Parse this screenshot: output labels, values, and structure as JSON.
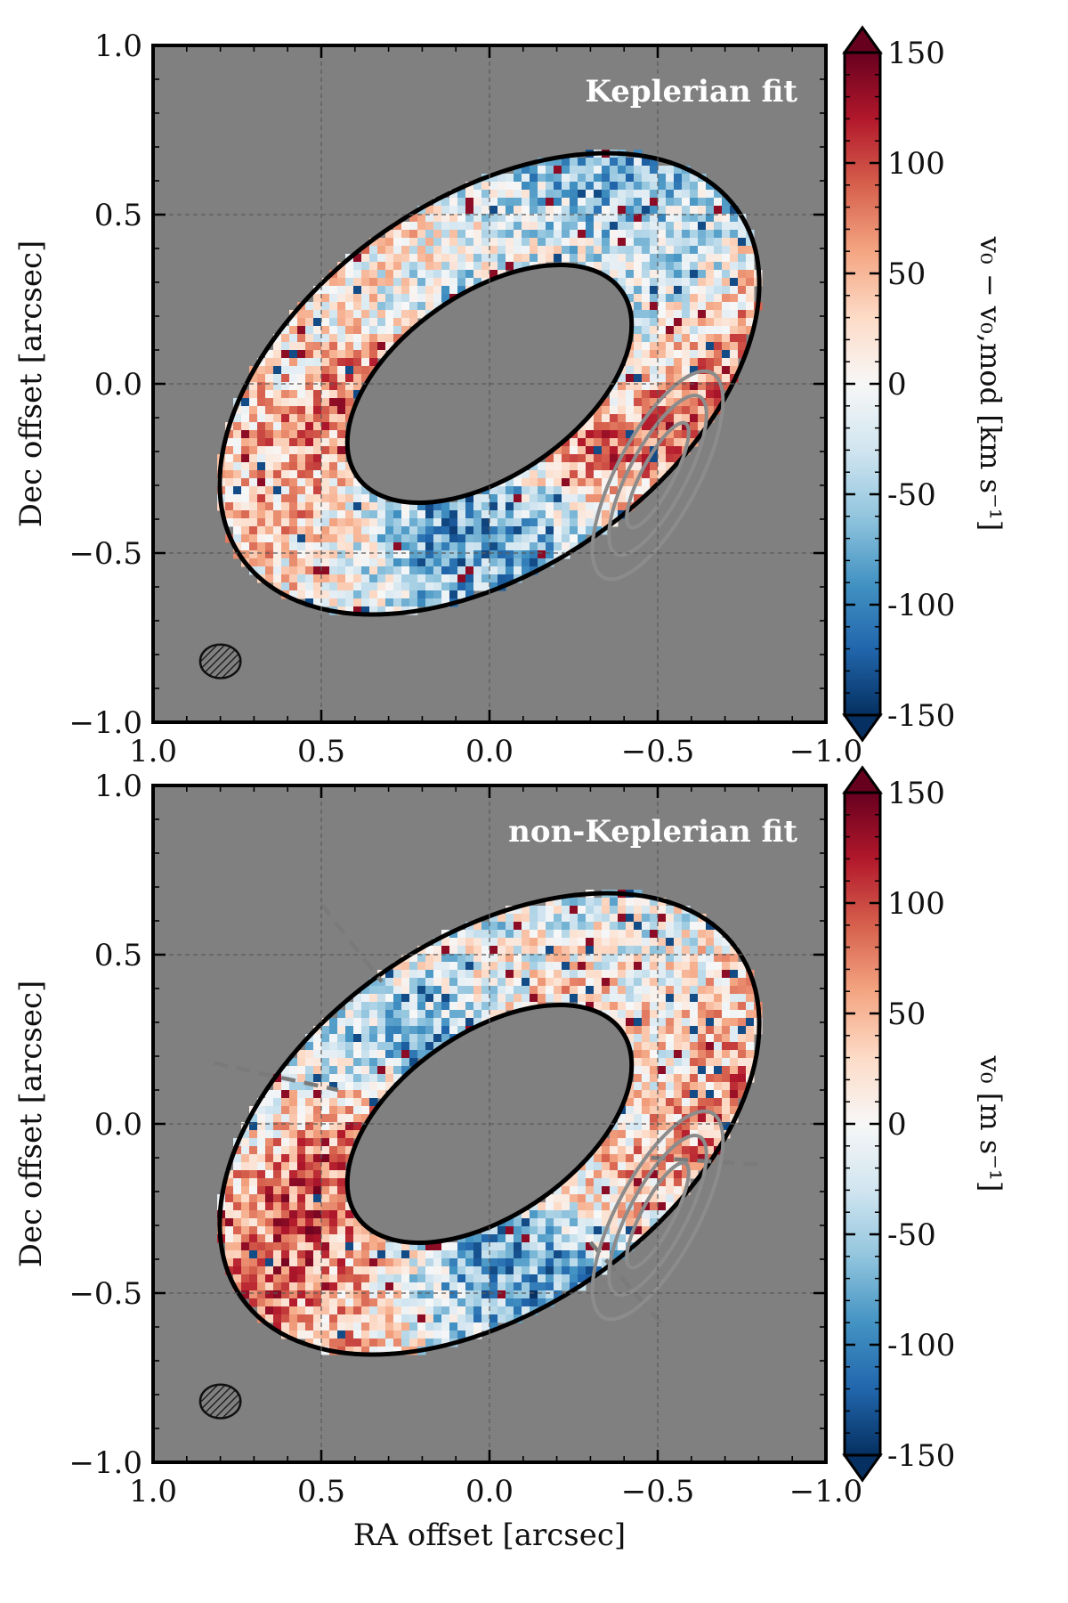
{
  "chart_data": [
    {
      "type": "heatmap",
      "panel_label": "Keplerian fit",
      "xlabel": "RA offset [arcsec]",
      "ylabel": "Dec offset [arcsec]",
      "xlim": [
        1.0,
        -1.0
      ],
      "ylim": [
        -1.0,
        1.0
      ],
      "x_ticks": [
        "1.0",
        "0.5",
        "0.0",
        "−0.5",
        "−1.0"
      ],
      "y_ticks": [
        "1.0",
        "0.5",
        "0.0",
        "−0.5",
        "−1.0"
      ],
      "grid": true,
      "background_color": "#808080",
      "colorbar": {
        "label": "v₀ − v₀,mod   [km s⁻¹]",
        "range": [
          -150,
          150
        ],
        "ticks": [
          "150",
          "100",
          "50",
          "0",
          "-50",
          "-100",
          "-150"
        ],
        "colormap": "RdBu_r"
      },
      "ring": {
        "center": [
          0.0,
          0.0
        ],
        "outer_semi_axes": [
          0.9,
          0.55
        ],
        "inner_semi_axes": [
          0.48,
          0.27
        ],
        "position_angle_deg": -35
      },
      "beam": {
        "center": [
          0.8,
          -0.82
        ],
        "semi_axes": [
          0.06,
          0.05
        ]
      },
      "show_azimuth_lines": false,
      "seed": 7
    },
    {
      "type": "heatmap",
      "panel_label": "non-Keplerian fit",
      "xlabel": "RA offset [arcsec]",
      "ylabel": "Dec offset [arcsec]",
      "xlim": [
        1.0,
        -1.0
      ],
      "ylim": [
        -1.0,
        1.0
      ],
      "x_ticks": [
        "1.0",
        "0.5",
        "0.0",
        "−0.5",
        "−1.0"
      ],
      "y_ticks": [
        "1.0",
        "0.5",
        "0.0",
        "−0.5",
        "−1.0"
      ],
      "grid": true,
      "background_color": "#808080",
      "colorbar": {
        "label": "v₀   [m s⁻¹]",
        "range": [
          -150,
          150
        ],
        "ticks": [
          "150",
          "100",
          "50",
          "0",
          "-50",
          "-100",
          "-150"
        ],
        "colormap": "RdBu_r"
      },
      "ring": {
        "center": [
          0.0,
          0.0
        ],
        "outer_semi_axes": [
          0.9,
          0.55
        ],
        "inner_semi_axes": [
          0.48,
          0.27
        ],
        "position_angle_deg": -35
      },
      "beam": {
        "center": [
          0.8,
          -0.82
        ],
        "semi_axes": [
          0.06,
          0.05
        ]
      },
      "show_azimuth_lines": true,
      "seed": 19
    }
  ],
  "figure": {
    "shared_xlabel": "RA offset [arcsec]"
  }
}
